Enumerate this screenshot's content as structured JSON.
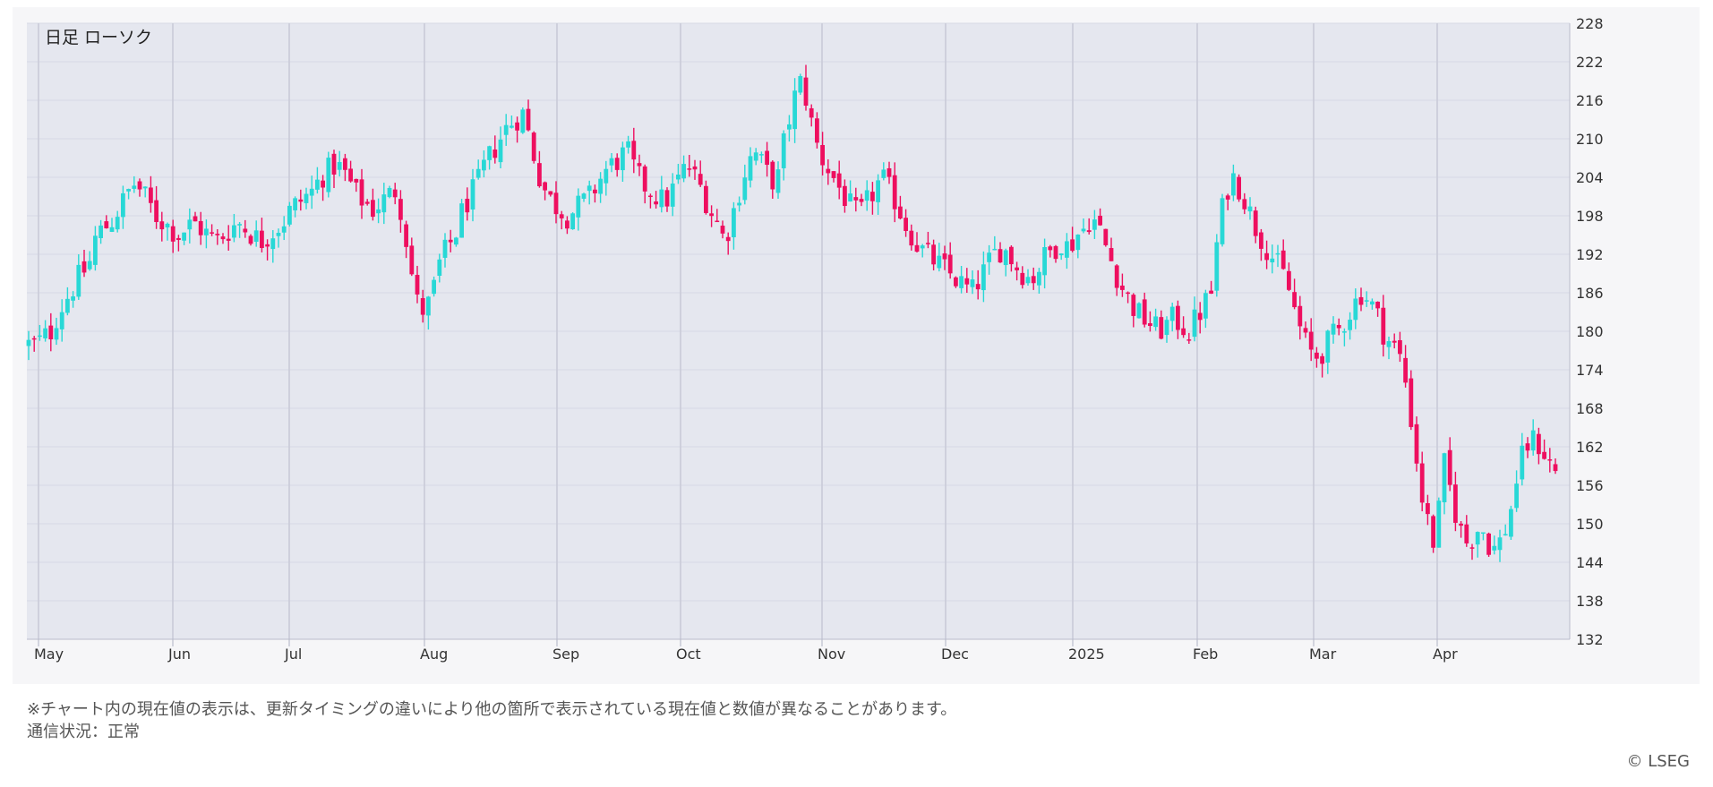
{
  "chart_data": {
    "type": "candlestick",
    "title": "日足 ローソク",
    "ylim": [
      132,
      228
    ],
    "yticks": [
      132,
      138,
      144,
      150,
      156,
      162,
      168,
      174,
      180,
      186,
      192,
      198,
      204,
      210,
      216,
      222,
      228
    ],
    "xticks": [
      "May",
      "Jun",
      "Jul",
      "Aug",
      "Sep",
      "Oct",
      "Nov",
      "Dec",
      "2025",
      "Feb",
      "Mar",
      "Apr"
    ],
    "grid": true,
    "legend": "none",
    "series": [
      {
        "values": [
          178,
          178,
          179,
          180,
          183,
          185,
          187,
          189,
          190,
          195,
          196,
          197,
          199,
          201,
          203,
          202,
          200,
          198,
          197,
          196,
          195,
          196,
          197,
          196,
          195,
          194,
          195,
          196,
          197,
          196,
          195,
          194,
          195,
          196,
          197,
          199,
          200,
          201,
          202,
          204,
          205,
          206,
          205,
          203,
          201,
          200,
          199,
          200,
          201,
          202,
          198,
          190,
          184,
          183,
          186,
          191,
          193,
          195,
          199,
          201,
          203,
          206,
          208,
          210,
          212,
          213,
          214,
          210,
          205,
          202,
          200,
          199,
          198,
          199,
          200,
          201,
          203,
          205,
          206,
          207,
          208,
          205,
          203,
          202,
          201,
          200,
          202,
          204,
          206,
          204,
          202,
          199,
          197,
          194,
          198,
          202,
          206,
          208,
          206,
          204,
          203,
          210,
          215,
          219,
          216,
          210,
          207,
          205,
          203,
          201,
          199,
          198,
          200,
          202,
          204,
          202,
          200,
          197,
          195,
          193,
          192,
          191,
          190,
          189,
          188,
          187,
          186,
          188,
          190,
          192,
          193,
          192,
          190,
          189,
          188,
          190,
          192,
          193,
          194,
          193,
          195,
          196,
          198,
          196,
          193,
          190,
          187,
          185,
          183,
          182,
          181,
          180,
          181,
          182,
          181,
          180,
          182,
          184,
          186,
          196,
          202,
          204,
          202,
          199,
          196,
          194,
          192,
          190,
          188,
          184,
          180,
          177,
          176,
          177,
          179,
          180,
          182,
          184,
          186,
          185,
          183,
          180,
          178,
          177,
          172,
          164,
          155,
          150,
          146,
          160,
          155,
          150,
          147,
          148,
          150,
          147,
          146,
          148,
          152,
          158,
          162,
          163,
          162,
          160,
          158
        ]
      }
    ]
  },
  "note_line1": "※チャート内の現在値の表示は、更新タイミングの違いにより他の箇所で表示されている現在値と数値が異なることがあります。",
  "note_line2": "通信状況：正常",
  "copyright": "© LSEG",
  "colors": {
    "up": "#28d8d6",
    "down": "#ee0f5f",
    "plot_bg": "#e5e7ef",
    "panel_bg": "#f6f6f8",
    "grid_major": "#c9cbd8",
    "grid_minor": "#d7d9e4",
    "axis_text": "#333333"
  }
}
